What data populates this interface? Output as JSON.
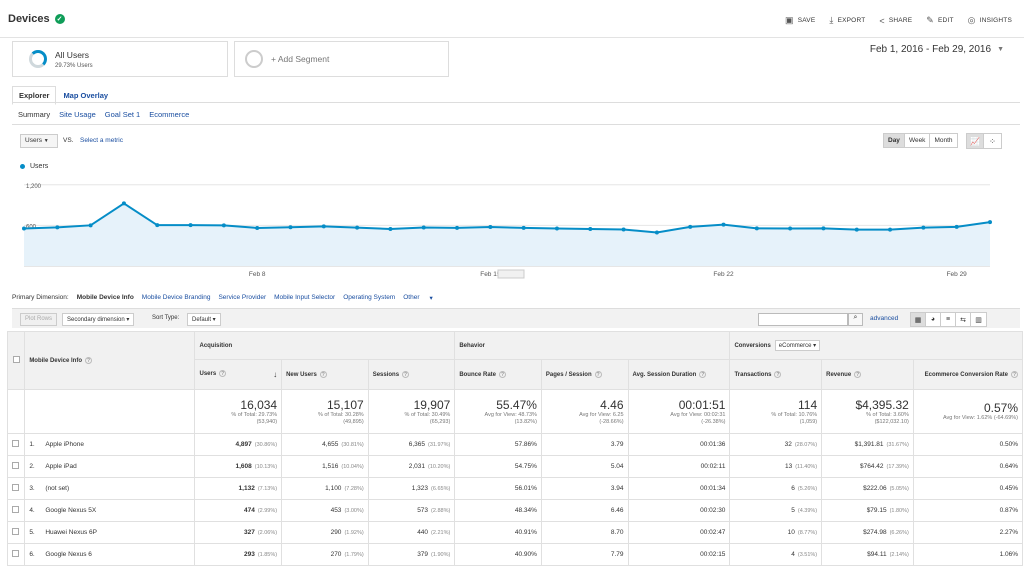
{
  "header": {
    "title": "Devices",
    "actions": [
      {
        "label": "SAVE",
        "icon": "save-icon",
        "glyph": "▣"
      },
      {
        "label": "EXPORT",
        "icon": "export-icon",
        "glyph": "⤓"
      },
      {
        "label": "SHARE",
        "icon": "share-icon",
        "glyph": "<"
      },
      {
        "label": "EDIT",
        "icon": "edit-icon",
        "glyph": "✎"
      },
      {
        "label": "INSIGHTS",
        "icon": "insights-icon",
        "glyph": "◎"
      }
    ]
  },
  "segments": {
    "seg1_name": "All Users",
    "seg1_sub": "29.73% Users",
    "add_label": "+ Add Segment"
  },
  "date_range": "Feb 1, 2016 - Feb 29, 2016",
  "tabs": {
    "explorer": "Explorer",
    "map": "Map Overlay"
  },
  "subtabs": [
    "Summary",
    "Site Usage",
    "Goal Set 1",
    "Ecommerce"
  ],
  "metric": {
    "selected": "Users",
    "vs": "VS.",
    "select": "Select a metric"
  },
  "period_buttons": [
    "Day",
    "Week",
    "Month"
  ],
  "legend": "Users",
  "chart_data": {
    "type": "area",
    "series": [
      {
        "name": "Users",
        "values": [
          554,
          571,
          601,
          925,
          603,
          603,
          600,
          562,
          572,
          585,
          567,
          547,
          569,
          564,
          577,
          563,
          554,
          546,
          539,
          495,
          578,
          611,
          556,
          554,
          556,
          537,
          537,
          567,
          578,
          648
        ]
      }
    ],
    "yticks": [
      "1,200",
      "600"
    ],
    "ylim": [
      0,
      1300
    ],
    "xtick_labels": [
      {
        "i": 7,
        "label": "Feb 8"
      },
      {
        "i": 14,
        "label": "Feb 15"
      },
      {
        "i": 21,
        "label": "Feb 22"
      },
      {
        "i": 28,
        "label": "Feb 29"
      }
    ],
    "color": "#058dc7"
  },
  "dimensions": {
    "label": "Primary Dimension:",
    "current": "Mobile Device Info",
    "others": [
      "Mobile Device Branding",
      "Service Provider",
      "Mobile Input Selector",
      "Operating System",
      "Other"
    ]
  },
  "toolbar": {
    "plot_rows": "Plot Rows",
    "secondary": "Secondary dimension",
    "sort_label": "Sort Type:",
    "sort_value": "Default",
    "advanced": "advanced"
  },
  "table": {
    "dim_header": "Mobile Device Info",
    "groups": {
      "acquisition": "Acquisition",
      "behavior": "Behavior",
      "conversions": "Conversions",
      "conv_select": "eCommerce"
    },
    "columns": [
      "Users",
      "New Users",
      "Sessions",
      "Bounce Rate",
      "Pages / Session",
      "Avg. Session Duration",
      "Transactions",
      "Revenue",
      "Ecommerce Conversion Rate"
    ],
    "totals": [
      {
        "v": "16,034",
        "s1": "% of Total: 29.73%",
        "s2": "(53,940)"
      },
      {
        "v": "15,107",
        "s1": "% of Total: 30.28%",
        "s2": "(49,895)"
      },
      {
        "v": "19,907",
        "s1": "% of Total: 30.49%",
        "s2": "(65,293)"
      },
      {
        "v": "55.47%",
        "s1": "Avg for View: 48.73%",
        "s2": "(13.82%)"
      },
      {
        "v": "4.46",
        "s1": "Avg for View: 6.25",
        "s2": "(-28.66%)"
      },
      {
        "v": "00:01:51",
        "s1": "Avg for View: 00:02:31",
        "s2": "(-26.38%)"
      },
      {
        "v": "114",
        "s1": "% of Total: 10.76%",
        "s2": "(1,059)"
      },
      {
        "v": "$4,395.32",
        "s1": "% of Total: 3.60%",
        "s2": "($122,032.10)"
      },
      {
        "v": "0.57%",
        "s1": "Avg for View: 1.62% (-64.69%)",
        "s2": ""
      }
    ],
    "rows": [
      {
        "n": "1.",
        "name": "Apple iPhone",
        "users": "4,897",
        "users_p": "(30.86%)",
        "new": "4,655",
        "new_p": "(30.81%)",
        "sess": "6,365",
        "sess_p": "(31.97%)",
        "bounce": "57.86%",
        "pages": "3.79",
        "dur": "00:01:36",
        "trans": "32",
        "trans_p": "(28.07%)",
        "rev": "$1,391.81",
        "rev_p": "(31.67%)",
        "conv": "0.50%"
      },
      {
        "n": "2.",
        "name": "Apple iPad",
        "users": "1,608",
        "users_p": "(10.13%)",
        "new": "1,516",
        "new_p": "(10.04%)",
        "sess": "2,031",
        "sess_p": "(10.20%)",
        "bounce": "54.75%",
        "pages": "5.04",
        "dur": "00:02:11",
        "trans": "13",
        "trans_p": "(11.40%)",
        "rev": "$764.42",
        "rev_p": "(17.39%)",
        "conv": "0.64%"
      },
      {
        "n": "3.",
        "name": "(not set)",
        "users": "1,132",
        "users_p": "(7.13%)",
        "new": "1,100",
        "new_p": "(7.28%)",
        "sess": "1,323",
        "sess_p": "(6.65%)",
        "bounce": "56.01%",
        "pages": "3.94",
        "dur": "00:01:34",
        "trans": "6",
        "trans_p": "(5.26%)",
        "rev": "$222.06",
        "rev_p": "(5.05%)",
        "conv": "0.45%"
      },
      {
        "n": "4.",
        "name": "Google Nexus 5X",
        "users": "474",
        "users_p": "(2.99%)",
        "new": "453",
        "new_p": "(3.00%)",
        "sess": "573",
        "sess_p": "(2.88%)",
        "bounce": "48.34%",
        "pages": "6.46",
        "dur": "00:02:30",
        "trans": "5",
        "trans_p": "(4.39%)",
        "rev": "$79.15",
        "rev_p": "(1.80%)",
        "conv": "0.87%"
      },
      {
        "n": "5.",
        "name": "Huawei Nexus 6P",
        "users": "327",
        "users_p": "(2.06%)",
        "new": "290",
        "new_p": "(1.92%)",
        "sess": "440",
        "sess_p": "(2.21%)",
        "bounce": "40.91%",
        "pages": "8.70",
        "dur": "00:02:47",
        "trans": "10",
        "trans_p": "(8.77%)",
        "rev": "$274.98",
        "rev_p": "(6.26%)",
        "conv": "2.27%"
      },
      {
        "n": "6.",
        "name": "Google Nexus 6",
        "users": "293",
        "users_p": "(1.85%)",
        "new": "270",
        "new_p": "(1.79%)",
        "sess": "379",
        "sess_p": "(1.90%)",
        "bounce": "40.90%",
        "pages": "7.79",
        "dur": "00:02:15",
        "trans": "4",
        "trans_p": "(3.51%)",
        "rev": "$94.11",
        "rev_p": "(2.14%)",
        "conv": "1.06%"
      }
    ]
  }
}
